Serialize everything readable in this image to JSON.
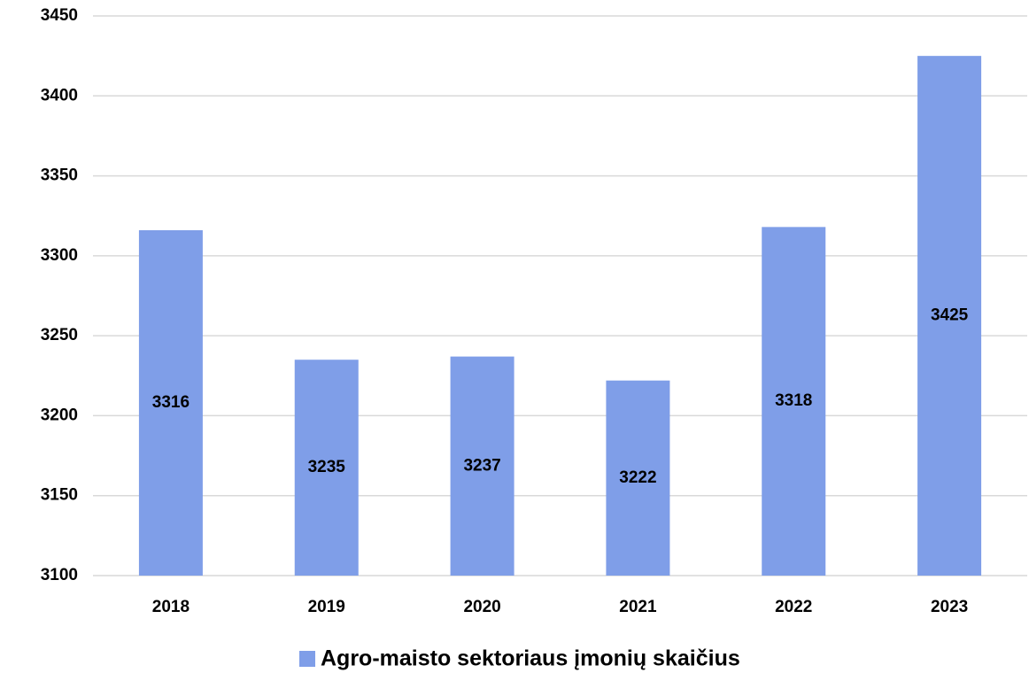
{
  "chart_data": {
    "type": "bar",
    "categories": [
      "2018",
      "2019",
      "2020",
      "2021",
      "2022",
      "2023"
    ],
    "series": [
      {
        "name": "Agro-maisto sektoriaus įmonių skaičius",
        "color": "#7f9ee8",
        "values": [
          3316,
          3235,
          3237,
          3222,
          3318,
          3425
        ]
      }
    ],
    "ylim": [
      3100,
      3450
    ],
    "yticks": [
      3100,
      3150,
      3200,
      3250,
      3300,
      3350,
      3400,
      3450
    ],
    "grid": true,
    "legend": "bottom"
  }
}
